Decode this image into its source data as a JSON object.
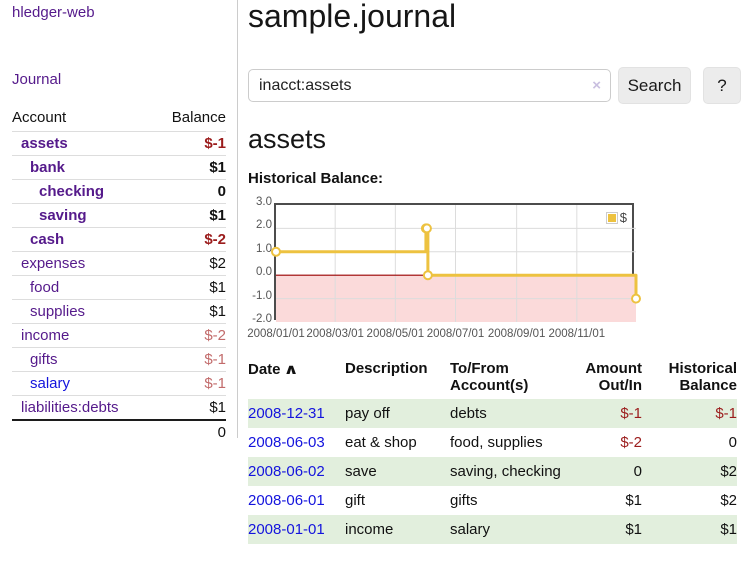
{
  "app": {
    "title": "hledger-web"
  },
  "sidebar": {
    "journal_label": "Journal",
    "account_table": {
      "headers": [
        "Account",
        "Balance"
      ],
      "rows": [
        {
          "name": "assets",
          "balance": "$-1",
          "indent": 1,
          "bold": true,
          "balance_style": "negative",
          "link_style": "purple"
        },
        {
          "name": "bank",
          "balance": "$1",
          "indent": 2,
          "bold": true,
          "balance_style": "normal",
          "link_style": "purple"
        },
        {
          "name": "checking",
          "balance": "0",
          "indent": 3,
          "bold": true,
          "balance_style": "normal",
          "link_style": "purple"
        },
        {
          "name": "saving",
          "balance": "$1",
          "indent": 3,
          "bold": true,
          "balance_style": "normal",
          "link_style": "purple"
        },
        {
          "name": "cash",
          "balance": "$-2",
          "indent": 2,
          "bold": true,
          "balance_style": "negative",
          "link_style": "purple"
        },
        {
          "name": "expenses",
          "balance": "$2",
          "indent": 1,
          "bold": false,
          "balance_style": "normal",
          "link_style": "purple"
        },
        {
          "name": "food",
          "balance": "$1",
          "indent": 2,
          "bold": false,
          "balance_style": "normal",
          "link_style": "purple"
        },
        {
          "name": "supplies",
          "balance": "$1",
          "indent": 2,
          "bold": false,
          "balance_style": "normal",
          "link_style": "purple"
        },
        {
          "name": "income",
          "balance": "$-2",
          "indent": 1,
          "bold": false,
          "balance_style": "negative-soft",
          "link_style": "purple"
        },
        {
          "name": "gifts",
          "balance": "$-1",
          "indent": 2,
          "bold": false,
          "balance_style": "negative-soft",
          "link_style": "purple"
        },
        {
          "name": "salary",
          "balance": "$-1",
          "indent": 2,
          "bold": false,
          "balance_style": "negative-soft",
          "link_style": "blue"
        },
        {
          "name": "liabilities:debts",
          "balance": "$1",
          "indent": 1,
          "bold": false,
          "balance_style": "normal",
          "link_style": "purple"
        }
      ],
      "total": "0"
    }
  },
  "main": {
    "title": "sample.journal",
    "search": {
      "value": "inacct:assets",
      "clear_icon": "×",
      "button_label": "Search",
      "help_label": "?"
    },
    "account_heading": "assets"
  },
  "chart_data": {
    "type": "line",
    "title": "Historical Balance:",
    "step": true,
    "series": [
      {
        "name": "$",
        "color": "#edc240",
        "points": [
          [
            "2008-01-01",
            1.0
          ],
          [
            "2008-06-01",
            2.0
          ],
          [
            "2008-06-02",
            2.0
          ],
          [
            "2008-06-03",
            0.0
          ],
          [
            "2008-12-31",
            -1.0
          ]
        ]
      }
    ],
    "x_ticks": [
      "2008/01/01",
      "2008/03/01",
      "2008/05/01",
      "2008/07/01",
      "2008/09/01",
      "2008/11/01"
    ],
    "y_ticks": [
      3.0,
      2.0,
      1.0,
      0.0,
      -1.0,
      -2.0
    ],
    "xlim": [
      "2008-01-01",
      "2008-12-31"
    ],
    "ylim": [
      -2.0,
      3.0
    ],
    "grid": true,
    "legend_position": "top-right",
    "negative_region_color": "#fbdada",
    "zero_line_color": "#990000"
  },
  "register": {
    "headers": [
      "Date",
      "Description",
      "To/From\nAccount(s)",
      "Amount\nOut/In",
      "Historical\nBalance"
    ],
    "sort_indicator": "∧",
    "rows": [
      {
        "date": "2008-12-31",
        "description": "pay off",
        "accounts": "debts",
        "amount": "$-1",
        "amount_negative": true,
        "balance": "$-1",
        "balance_negative": true,
        "shaded": true
      },
      {
        "date": "2008-06-03",
        "description": "eat & shop",
        "accounts": "food, supplies",
        "amount": "$-2",
        "amount_negative": true,
        "balance": "0",
        "balance_negative": false,
        "shaded": false
      },
      {
        "date": "2008-06-02",
        "description": "save",
        "accounts": "saving, checking",
        "amount": "0",
        "amount_negative": false,
        "balance": "$2",
        "balance_negative": false,
        "shaded": true
      },
      {
        "date": "2008-06-01",
        "description": "gift",
        "accounts": "gifts",
        "amount": "$1",
        "amount_negative": false,
        "balance": "$2",
        "balance_negative": false,
        "shaded": false
      },
      {
        "date": "2008-01-01",
        "description": "income",
        "accounts": "salary",
        "amount": "$1",
        "amount_negative": false,
        "balance": "$1",
        "balance_negative": false,
        "shaded": true
      }
    ]
  },
  "colors": {
    "link_purple": "#551a8b",
    "link_blue": "#1414dd",
    "negative": "#9b1c1c",
    "negative_soft": "#c26b6b",
    "row_shade_green": "#e2efdd"
  }
}
